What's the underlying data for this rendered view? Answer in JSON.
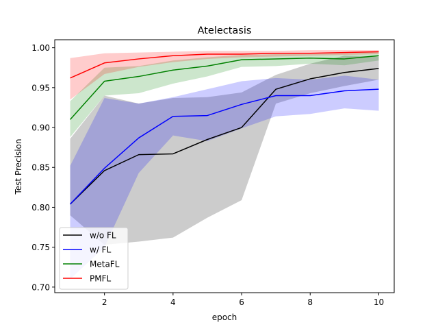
{
  "chart_data": {
    "type": "line",
    "title": "Atelectasis",
    "xlabel": "epoch",
    "ylabel": "Test Precision",
    "xlim": [
      0.55,
      10.45
    ],
    "ylim": [
      0.693,
      1.01
    ],
    "xticks": [
      2,
      4,
      6,
      8,
      10
    ],
    "yticks": [
      0.7,
      0.75,
      0.8,
      0.85,
      0.9,
      0.95,
      1.0
    ],
    "ytick_labels": [
      "0.70",
      "0.75",
      "0.80",
      "0.85",
      "0.90",
      "0.95",
      "1.00"
    ],
    "grid": false,
    "legend_position": "lower-left",
    "x": [
      1,
      2,
      3,
      4,
      5,
      6,
      7,
      8,
      9,
      10
    ],
    "series": [
      {
        "name": "w/o FL",
        "color": "#000000",
        "band_color": "#808080",
        "band_opacity": 0.4,
        "values": [
          0.804,
          0.846,
          0.866,
          0.867,
          0.885,
          0.9,
          0.948,
          0.961,
          0.969,
          0.974
        ],
        "lower": [
          0.79,
          0.753,
          0.757,
          0.762,
          0.787,
          0.809,
          0.93,
          0.943,
          0.952,
          0.96
        ],
        "upper": [
          0.886,
          0.94,
          0.93,
          0.937,
          0.938,
          0.944,
          0.966,
          0.98,
          0.99,
          0.989
        ]
      },
      {
        "name": "w/ FL",
        "color": "#0000ff",
        "band_color": "#0000ff",
        "band_opacity": 0.2,
        "values": [
          0.804,
          0.849,
          0.887,
          0.914,
          0.915,
          0.929,
          0.94,
          0.94,
          0.946,
          0.948
        ],
        "lower": [
          0.71,
          0.75,
          0.843,
          0.89,
          0.883,
          0.899,
          0.914,
          0.917,
          0.924,
          0.921
        ],
        "upper": [
          0.852,
          0.937,
          0.93,
          0.938,
          0.948,
          0.958,
          0.962,
          0.96,
          0.965,
          0.96
        ]
      },
      {
        "name": "MetaFL",
        "color": "#008000",
        "band_color": "#008000",
        "band_opacity": 0.2,
        "values": [
          0.91,
          0.958,
          0.964,
          0.972,
          0.977,
          0.985,
          0.986,
          0.987,
          0.986,
          0.99
        ],
        "lower": [
          0.888,
          0.94,
          0.943,
          0.955,
          0.964,
          0.976,
          0.977,
          0.98,
          0.978,
          0.984
        ],
        "upper": [
          0.933,
          0.975,
          0.977,
          0.984,
          0.988,
          0.991,
          0.992,
          0.992,
          0.993,
          0.995
        ]
      },
      {
        "name": "PMFL",
        "color": "#ff0000",
        "band_color": "#ff0000",
        "band_opacity": 0.2,
        "values": [
          0.962,
          0.981,
          0.986,
          0.99,
          0.992,
          0.992,
          0.993,
          0.993,
          0.994,
          0.995
        ],
        "lower": [
          0.935,
          0.967,
          0.976,
          0.982,
          0.986,
          0.988,
          0.989,
          0.99,
          0.991,
          0.992
        ],
        "upper": [
          0.987,
          0.993,
          0.994,
          0.995,
          0.996,
          0.996,
          0.996,
          0.997,
          0.997,
          0.997
        ]
      }
    ]
  }
}
